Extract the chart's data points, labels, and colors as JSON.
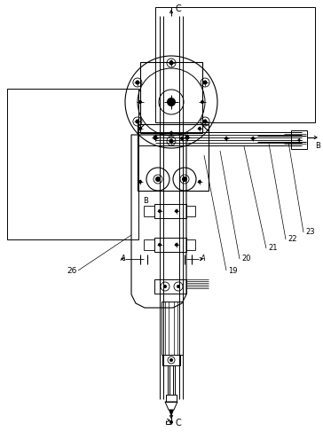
{
  "bg_color": "#ffffff",
  "lc": "#000000",
  "lw": 0.6,
  "fig_w": 3.64,
  "fig_h": 4.95,
  "dpi": 100,
  "labels": {
    "C_top": "C",
    "C_bot": "C",
    "B_left": "B",
    "B_right": "B",
    "A_left": "A",
    "A_right": "A",
    "n19": "19",
    "n20": "20",
    "n21": "21",
    "n22": "22",
    "n23": "23",
    "n26": "26"
  }
}
